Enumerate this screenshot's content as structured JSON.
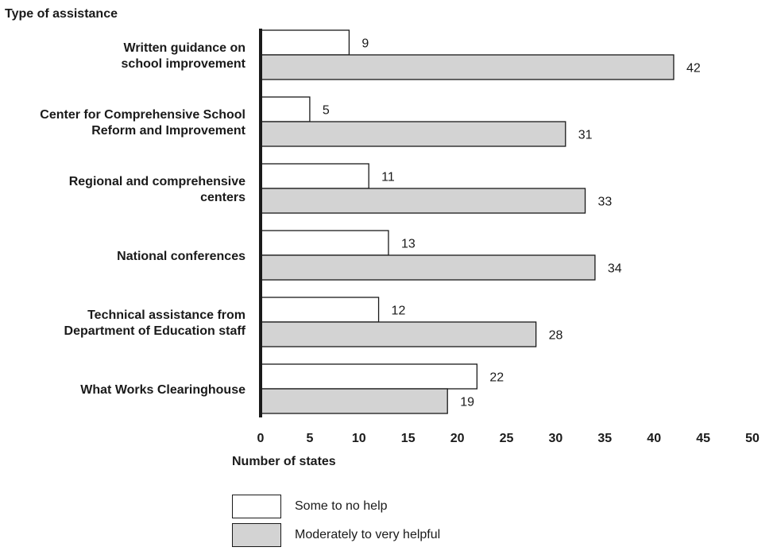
{
  "chart_data": {
    "type": "bar",
    "orientation": "horizontal",
    "title": "",
    "ylabel": "Type of assistance",
    "xlabel": "Number of states",
    "xlim": [
      0,
      50
    ],
    "xticks": [
      0,
      5,
      10,
      15,
      20,
      25,
      30,
      35,
      40,
      45,
      50
    ],
    "grid": false,
    "legend_placement": "bottom",
    "categories": [
      [
        "Written guidance on",
        "school improvement"
      ],
      [
        "Center for Comprehensive School",
        "Reform and Improvement"
      ],
      [
        "Regional and comprehensive",
        "centers"
      ],
      [
        "National conferences"
      ],
      [
        "Technical assistance from",
        "Department of Education staff"
      ],
      [
        "What Works Clearinghouse"
      ]
    ],
    "series": [
      {
        "name": "Some to no help",
        "color": "#ffffff",
        "values": [
          9,
          5,
          11,
          13,
          12,
          22
        ]
      },
      {
        "name": "Moderately to very helpful",
        "color": "#d3d3d3",
        "values": [
          42,
          31,
          33,
          34,
          28,
          19
        ]
      }
    ]
  }
}
